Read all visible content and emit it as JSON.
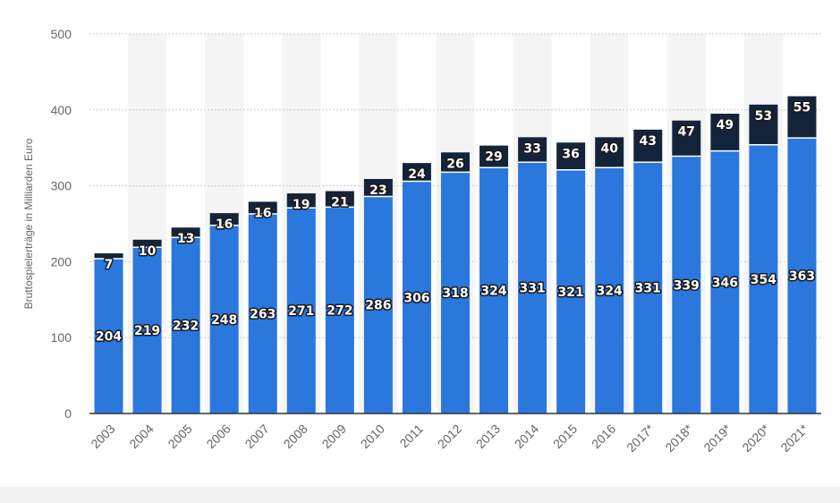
{
  "chart_data": {
    "type": "bar",
    "stacked": true,
    "ylabel": "Bruttospielerträge in Milliarden Euro",
    "ylim": [
      0,
      500
    ],
    "yticks": [
      0,
      100,
      200,
      300,
      400,
      500
    ],
    "grid": true,
    "categories": [
      "2003",
      "2004",
      "2005",
      "2006",
      "2007",
      "2008",
      "2009",
      "2010",
      "2011",
      "2012",
      "2013",
      "2014",
      "2015",
      "2016",
      "2017*",
      "2018*",
      "2019*",
      "2020*",
      "2021*"
    ],
    "series": [
      {
        "color": "#2a77dd",
        "values": [
          204,
          219,
          232,
          248,
          263,
          271,
          272,
          286,
          306,
          318,
          324,
          331,
          321,
          324,
          331,
          339,
          346,
          354,
          363
        ]
      },
      {
        "color": "#13243a",
        "values": [
          7,
          10,
          13,
          16,
          16,
          19,
          21,
          23,
          24,
          26,
          29,
          33,
          36,
          40,
          43,
          47,
          49,
          53,
          55
        ]
      }
    ]
  }
}
